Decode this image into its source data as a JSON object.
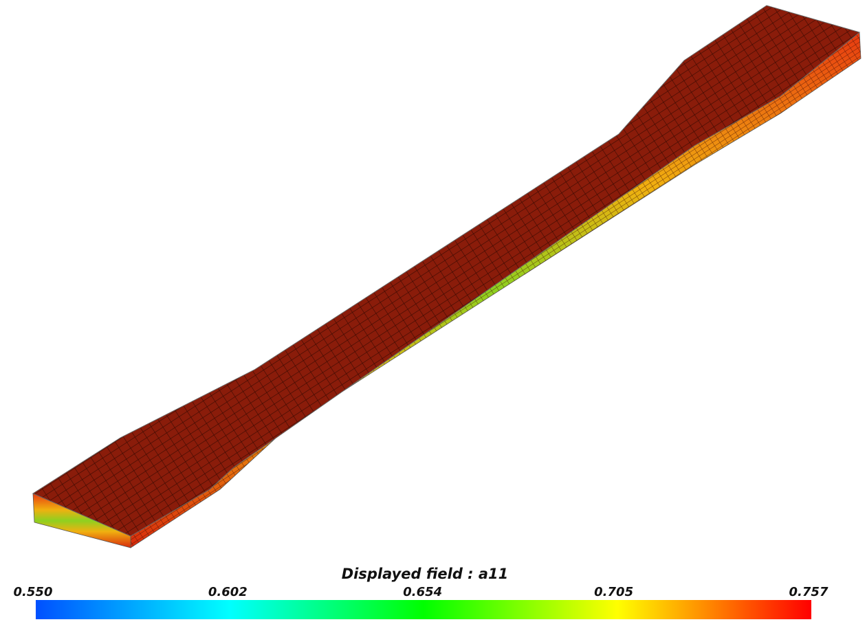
{
  "legend": {
    "title": "Displayed field : a11",
    "ticks": [
      {
        "value": 0.55,
        "label": "0.550"
      },
      0.602,
      0.654,
      0.705,
      0.757
    ]
  }
}
